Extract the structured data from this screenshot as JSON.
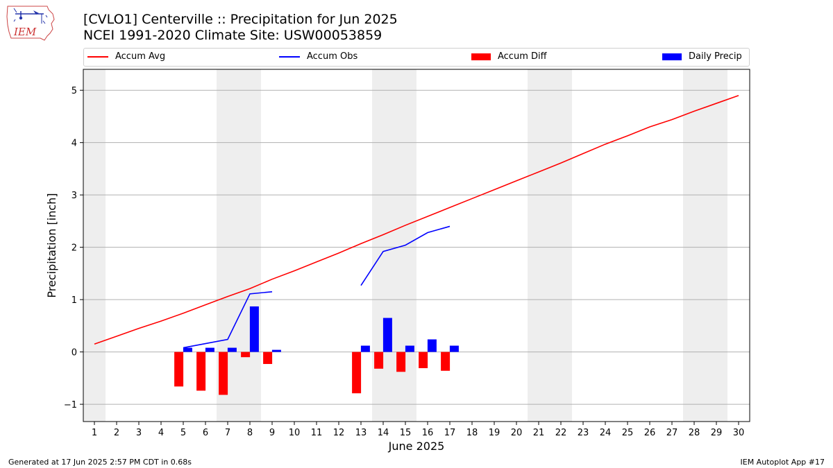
{
  "header": {
    "title_line1": "[CVLO1] Centerville :: Precipitation for Jun 2025",
    "title_line2": "NCEI 1991-2020 Climate Site: USW00053859"
  },
  "logo": {
    "text": "IEM",
    "icon": "iem-iowa-logo-icon"
  },
  "footer": {
    "left": "Generated at 17 Jun 2025 2:57 PM CDT in 0.68s",
    "right": "IEM Autoplot App #17"
  },
  "chart_data": {
    "type": "bar",
    "xlabel": "June 2025",
    "ylabel": "Precipitation [inch]",
    "xlim": [
      0.5,
      30.5
    ],
    "ylim": [
      -1.33,
      5.4
    ],
    "x_ticks": [
      1,
      2,
      3,
      4,
      5,
      6,
      7,
      8,
      9,
      10,
      11,
      12,
      13,
      14,
      15,
      16,
      17,
      18,
      19,
      20,
      21,
      22,
      23,
      24,
      25,
      26,
      27,
      28,
      29,
      30
    ],
    "y_ticks": [
      -1,
      0,
      1,
      2,
      3,
      4,
      5
    ],
    "y_tick_labels": [
      "−1",
      "0",
      "1",
      "2",
      "3",
      "4",
      "5"
    ],
    "grid": "horizontal",
    "weekend_shading": [
      [
        0.5,
        1.5
      ],
      [
        6.5,
        8.5
      ],
      [
        13.5,
        15.5
      ],
      [
        20.5,
        22.5
      ],
      [
        27.5,
        29.5
      ]
    ],
    "legend": {
      "placement": "top",
      "items": [
        {
          "label": "Accum Avg",
          "kind": "line",
          "color": "#ff0000"
        },
        {
          "label": "Accum Obs",
          "kind": "line",
          "color": "#0000ff"
        },
        {
          "label": "Accum Diff",
          "kind": "bar",
          "color": "#ff0000"
        },
        {
          "label": "Daily Precip",
          "kind": "bar",
          "color": "#0000ff"
        }
      ]
    },
    "series": [
      {
        "name": "Accum Avg",
        "type": "line",
        "color": "#ff0000",
        "x": [
          1,
          2,
          3,
          4,
          5,
          6,
          7,
          8,
          9,
          10,
          11,
          12,
          13,
          14,
          15,
          16,
          17,
          18,
          19,
          20,
          21,
          22,
          23,
          24,
          25,
          26,
          27,
          28,
          29,
          30
        ],
        "values": [
          0.15,
          0.3,
          0.45,
          0.59,
          0.74,
          0.9,
          1.06,
          1.21,
          1.39,
          1.55,
          1.72,
          1.89,
          2.07,
          2.24,
          2.42,
          2.59,
          2.76,
          2.93,
          3.1,
          3.27,
          3.44,
          3.61,
          3.79,
          3.97,
          4.13,
          4.3,
          4.44,
          4.6,
          4.75,
          4.9
        ]
      },
      {
        "name": "Accum Obs",
        "type": "line",
        "color": "#0000ff",
        "segments": [
          {
            "x": [
              5,
              6,
              7,
              8,
              9
            ],
            "values": [
              0.08,
              0.16,
              0.24,
              1.11,
              1.15
            ]
          },
          {
            "x": [
              13,
              14,
              15,
              16,
              17
            ],
            "values": [
              1.27,
              1.92,
              2.04,
              2.28,
              2.4
            ]
          }
        ]
      },
      {
        "name": "Accum Diff",
        "type": "bar",
        "color": "#ff0000",
        "offset": -0.2,
        "x": [
          5,
          6,
          7,
          8,
          9,
          13,
          14,
          15,
          16,
          17
        ],
        "values": [
          -0.66,
          -0.74,
          -0.82,
          -0.1,
          -0.23,
          -0.79,
          -0.32,
          -0.38,
          -0.31,
          -0.36
        ]
      },
      {
        "name": "Daily Precip",
        "type": "bar",
        "color": "#0000ff",
        "offset": 0.2,
        "x": [
          5,
          6,
          7,
          8,
          9,
          13,
          14,
          15,
          16,
          17
        ],
        "values": [
          0.08,
          0.08,
          0.08,
          0.87,
          0.04,
          0.12,
          0.65,
          0.12,
          0.24,
          0.12
        ]
      }
    ]
  }
}
